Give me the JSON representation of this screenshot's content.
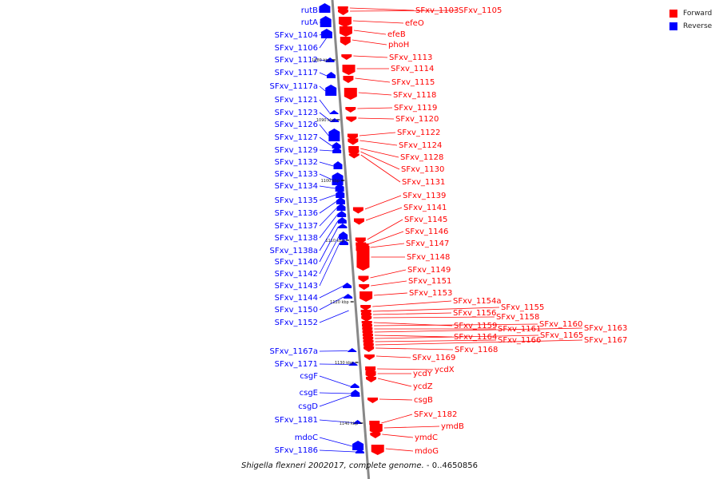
{
  "legend": {
    "forward": {
      "label": "Forward",
      "color": "#ff0000"
    },
    "reverse": {
      "label": "Reverse",
      "color": "#0000ff"
    }
  },
  "caption": {
    "organism": "Shigella flexneri 2002017, complete genome.",
    "range": " - 0..4650856"
  },
  "ticks": [
    "1080 kbp",
    "1090 kbp",
    "1100 kbp",
    "1110 kbp",
    "1120 kbp",
    "1130 kbp",
    "1140 kbp"
  ],
  "genes": {
    "reverse": [
      "rutB",
      "rutA",
      "SFxv_1104",
      "SFxv_1106",
      "SFxv_1112",
      "SFxv_1117",
      "SFxv_1117a",
      "SFxv_1121",
      "SFxv_1123",
      "SFxv_1126",
      "SFxv_1127",
      "SFxv_1129",
      "SFxv_1132",
      "SFxv_1133",
      "SFxv_1134",
      "SFxv_1135",
      "SFxv_1136",
      "SFxv_1137",
      "SFxv_1138",
      "SFxv_1138a",
      "SFxv_1140",
      "SFxv_1142",
      "SFxv_1143",
      "SFxv_1144",
      "SFxv_1150",
      "SFxv_1152",
      "SFxv_1167a",
      "SFxv_1171",
      "csgF",
      "csgE",
      "csgD",
      "SFxv_1181",
      "mdoC",
      "SFxv_1186"
    ],
    "forward": [
      "SFxv_1103",
      "SFxv_1105",
      "efeO",
      "efeB",
      "phoH",
      "SFxv_1113",
      "SFxv_1114",
      "SFxv_1115",
      "SFxv_1118",
      "SFxv_1119",
      "SFxv_1120",
      "SFxv_1122",
      "SFxv_1124",
      "SFxv_1128",
      "SFxv_1130",
      "SFxv_1131",
      "SFxv_1139",
      "SFxv_1141",
      "SFxv_1145",
      "SFxv_1146",
      "SFxv_1147",
      "SFxv_1148",
      "SFxv_1149",
      "SFxv_1151",
      "SFxv_1153",
      "SFxv_1154a",
      "SFxv_1155",
      "SFxv_1156",
      "SFxv_1158",
      "SFxv_1159",
      "SFxv_1160",
      "SFxv_1161",
      "SFxv_1163",
      "SFxv_1164",
      "SFxv_1165",
      "SFxv_1166",
      "SFxv_1167",
      "SFxv_1168",
      "SFxv_1169",
      "ycdX",
      "ycdY",
      "ycdZ",
      "csgB",
      "SFxv_1182",
      "ymdB",
      "ymdC",
      "mdoG"
    ]
  }
}
